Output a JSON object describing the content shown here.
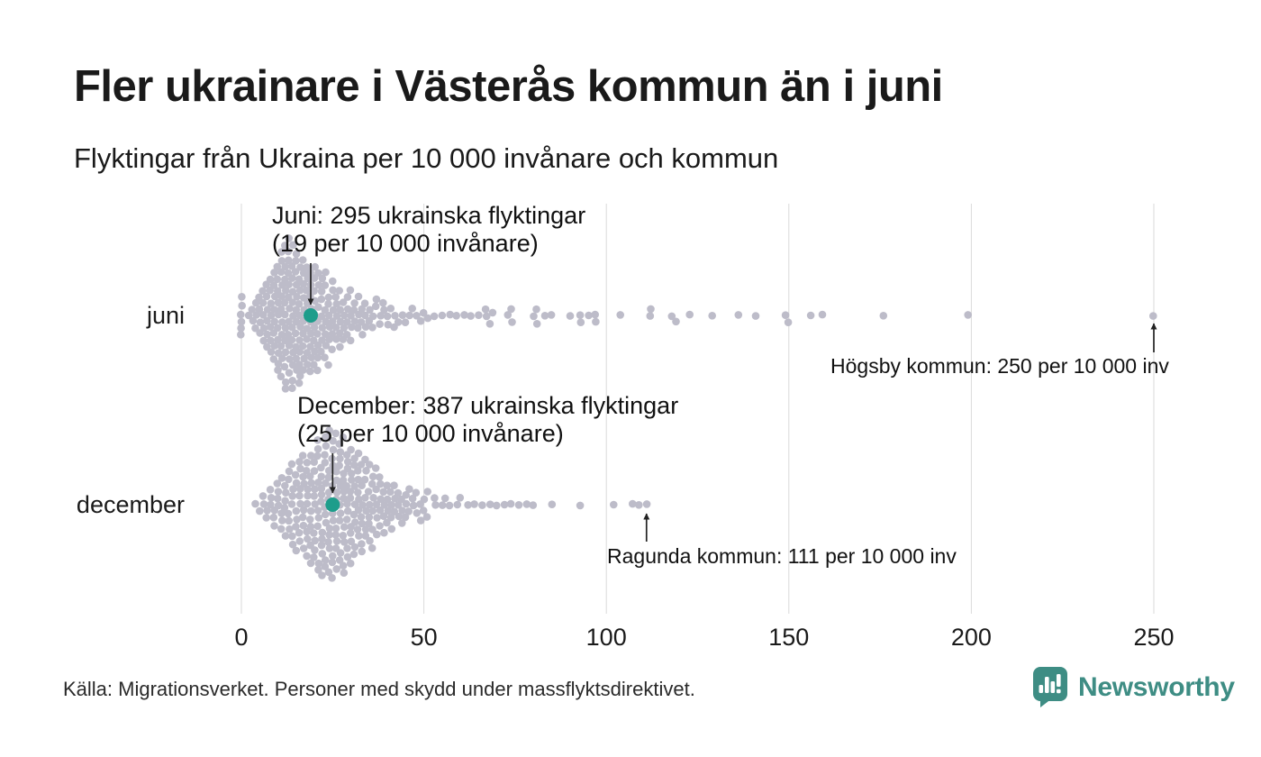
{
  "chart_data": {
    "type": "scatter",
    "variant": "beeswarm",
    "title": "Fler ukrainare i Västerås kommun än i juni",
    "subtitle": "Flyktingar från Ukraina per 10 000 invånare och kommun",
    "source": "Källa: Migrationsverket. Personer med skydd under massflyktsdirektivet.",
    "unit": "flyktingar per 10 000 invånare",
    "categories": [
      "juni",
      "december"
    ],
    "xlim": [
      0,
      250
    ],
    "xticks": [
      0,
      50,
      100,
      150,
      200,
      250
    ],
    "grid": true,
    "series": [
      {
        "name": "juni",
        "distribution": [
          [
            0,
            6
          ],
          [
            2,
            1
          ],
          [
            3,
            2
          ],
          [
            4,
            3
          ],
          [
            5,
            4
          ],
          [
            6,
            5
          ],
          [
            7,
            6
          ],
          [
            8,
            7
          ],
          [
            9,
            8
          ],
          [
            10,
            10
          ],
          [
            11,
            11
          ],
          [
            12,
            12
          ],
          [
            13,
            12
          ],
          [
            14,
            12
          ],
          [
            15,
            11
          ],
          [
            16,
            11
          ],
          [
            17,
            10
          ],
          [
            18,
            9
          ],
          [
            19,
            9
          ],
          [
            20,
            9
          ],
          [
            21,
            8
          ],
          [
            22,
            7
          ],
          [
            23,
            7
          ],
          [
            24,
            6
          ],
          [
            25,
            6
          ],
          [
            26,
            5
          ],
          [
            27,
            5
          ],
          [
            28,
            4
          ],
          [
            29,
            4
          ],
          [
            30,
            4
          ],
          [
            31,
            3
          ],
          [
            32,
            3
          ],
          [
            33,
            3
          ],
          [
            34,
            3
          ],
          [
            35,
            2
          ],
          [
            36,
            2
          ],
          [
            37,
            2
          ],
          [
            38,
            2
          ],
          [
            39,
            2
          ],
          [
            40,
            2
          ],
          [
            41,
            1
          ],
          [
            42,
            2
          ],
          [
            43,
            1
          ],
          [
            44,
            1
          ],
          [
            45,
            1
          ],
          [
            46,
            1
          ],
          [
            47,
            1
          ],
          [
            48,
            1
          ],
          [
            49,
            1
          ],
          [
            50,
            1
          ],
          [
            51,
            1
          ],
          [
            53,
            1
          ],
          [
            55,
            1
          ],
          [
            57,
            1
          ],
          [
            59,
            1
          ],
          [
            61,
            1
          ],
          [
            63,
            1
          ],
          [
            65,
            1
          ],
          [
            67,
            2
          ],
          [
            68,
            1
          ],
          [
            69,
            1
          ],
          [
            73,
            1
          ],
          [
            74,
            2
          ],
          [
            80,
            1
          ],
          [
            81,
            2
          ],
          [
            83,
            1
          ],
          [
            85,
            1
          ],
          [
            90,
            1
          ],
          [
            93,
            2
          ],
          [
            95,
            1
          ],
          [
            97,
            2
          ],
          [
            104,
            1
          ],
          [
            112,
            2
          ],
          [
            118,
            1
          ],
          [
            119,
            1
          ],
          [
            123,
            1
          ],
          [
            129,
            1
          ],
          [
            136,
            1
          ],
          [
            141,
            1
          ],
          [
            149,
            1
          ],
          [
            150,
            1
          ],
          [
            156,
            1
          ],
          [
            159,
            1
          ],
          [
            176,
            1
          ],
          [
            199,
            1
          ],
          [
            250,
            1
          ]
        ]
      },
      {
        "name": "december",
        "distribution": [
          [
            4,
            1
          ],
          [
            5,
            1
          ],
          [
            6,
            2
          ],
          [
            7,
            2
          ],
          [
            8,
            3
          ],
          [
            9,
            3
          ],
          [
            10,
            4
          ],
          [
            11,
            4
          ],
          [
            12,
            5
          ],
          [
            13,
            5
          ],
          [
            14,
            6
          ],
          [
            15,
            6
          ],
          [
            16,
            7
          ],
          [
            17,
            7
          ],
          [
            18,
            8
          ],
          [
            19,
            8
          ],
          [
            20,
            9
          ],
          [
            21,
            9
          ],
          [
            22,
            10
          ],
          [
            23,
            10
          ],
          [
            24,
            10
          ],
          [
            25,
            11
          ],
          [
            26,
            10
          ],
          [
            27,
            10
          ],
          [
            28,
            10
          ],
          [
            29,
            9
          ],
          [
            30,
            9
          ],
          [
            31,
            8
          ],
          [
            32,
            8
          ],
          [
            33,
            7
          ],
          [
            34,
            7
          ],
          [
            35,
            6
          ],
          [
            36,
            6
          ],
          [
            37,
            5
          ],
          [
            38,
            5
          ],
          [
            39,
            4
          ],
          [
            40,
            4
          ],
          [
            41,
            4
          ],
          [
            42,
            3
          ],
          [
            43,
            3
          ],
          [
            44,
            3
          ],
          [
            45,
            3
          ],
          [
            46,
            2
          ],
          [
            47,
            2
          ],
          [
            48,
            2
          ],
          [
            49,
            2
          ],
          [
            50,
            2
          ],
          [
            51,
            2
          ],
          [
            53,
            2
          ],
          [
            55,
            1
          ],
          [
            56,
            1
          ],
          [
            57,
            1
          ],
          [
            59,
            1
          ],
          [
            60,
            1
          ],
          [
            62,
            1
          ],
          [
            64,
            1
          ],
          [
            66,
            1
          ],
          [
            68,
            1
          ],
          [
            70,
            1
          ],
          [
            72,
            1
          ],
          [
            74,
            1
          ],
          [
            76,
            1
          ],
          [
            78,
            1
          ],
          [
            80,
            1
          ],
          [
            85,
            1
          ],
          [
            93,
            1
          ],
          [
            102,
            1
          ],
          [
            107,
            1
          ],
          [
            109,
            1
          ],
          [
            111,
            1
          ]
        ]
      }
    ],
    "highlights": [
      {
        "series": "juni",
        "value": 19,
        "label_line1": "Juni: 295 ukrainska flyktingar",
        "label_line2": "(19 per 10 000 invånare)"
      },
      {
        "series": "december",
        "value": 25,
        "label_line1": "December: 387 ukrainska flyktingar",
        "label_line2": "(25 per 10 000 invånare)"
      }
    ],
    "outlier_annotations": [
      {
        "series": "juni",
        "value": 250,
        "text": "Högsby kommun: 250 per 10 000 inv"
      },
      {
        "series": "december",
        "value": 111,
        "text": "Ragunda kommun: 111 per 10 000 inv"
      }
    ],
    "colors": {
      "dot": "#bdbcc9",
      "highlight": "#1d9d8b",
      "gridline": "#dadada",
      "axis_text": "#1a1a1a",
      "arrow": "#222222"
    }
  },
  "branding": {
    "wordmark": "Newsworthy",
    "color": "#3e8d84"
  }
}
